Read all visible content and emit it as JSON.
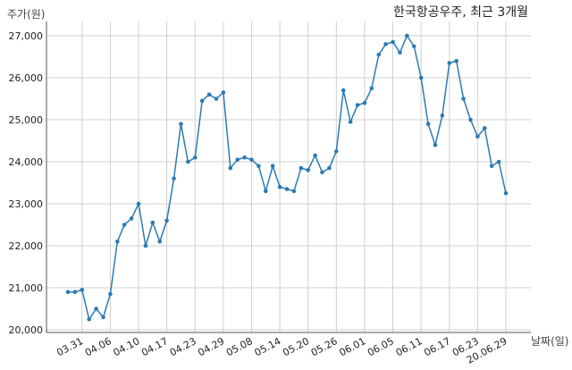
{
  "chart_data": {
    "type": "line",
    "title": "한국항공우주, 최근 3개월",
    "ylabel": "주가(원)",
    "xlabel": "날짜(일)",
    "ylim": [
      20000,
      27300
    ],
    "yticks": [
      20000,
      21000,
      22000,
      23000,
      24000,
      25000,
      26000,
      27000
    ],
    "ytick_labels": [
      "20,000",
      "21,000",
      "22,000",
      "23,000",
      "24,000",
      "25,000",
      "26,000",
      "27,000"
    ],
    "xtick_labels": [
      "03.31",
      "04.06",
      "04.10",
      "04.17",
      "04.23",
      "04.29",
      "05.08",
      "05.14",
      "05.20",
      "05.26",
      "06.01",
      "06.05",
      "06.11",
      "06.17",
      "06.23",
      "20.06.29"
    ],
    "xtick_indices": [
      2,
      6,
      10,
      14,
      18,
      22,
      26,
      30,
      34,
      38,
      42,
      46,
      50,
      54,
      58,
      62
    ],
    "grid": true,
    "line_color": "#2b7bb4",
    "series": [
      {
        "values": [
          20900,
          20900,
          20950,
          20250,
          20500,
          20300,
          20850,
          22100,
          22500,
          22650,
          23000,
          22000,
          22550,
          22100,
          22600,
          23600,
          24900,
          24000,
          24100,
          25450,
          25600,
          25500,
          25650,
          23850,
          24050,
          24100,
          24050,
          23900,
          23300,
          23900,
          23400,
          23350,
          23300,
          23850,
          23800,
          24150,
          23750,
          23850,
          24250,
          25700,
          24950,
          25350,
          25400,
          25750,
          26550,
          26800,
          26850,
          26600,
          27000,
          26750,
          26000,
          24900,
          24400,
          25100,
          26350,
          26400,
          25500,
          25000,
          24600,
          24800,
          23900,
          24000,
          23250
        ]
      }
    ]
  }
}
